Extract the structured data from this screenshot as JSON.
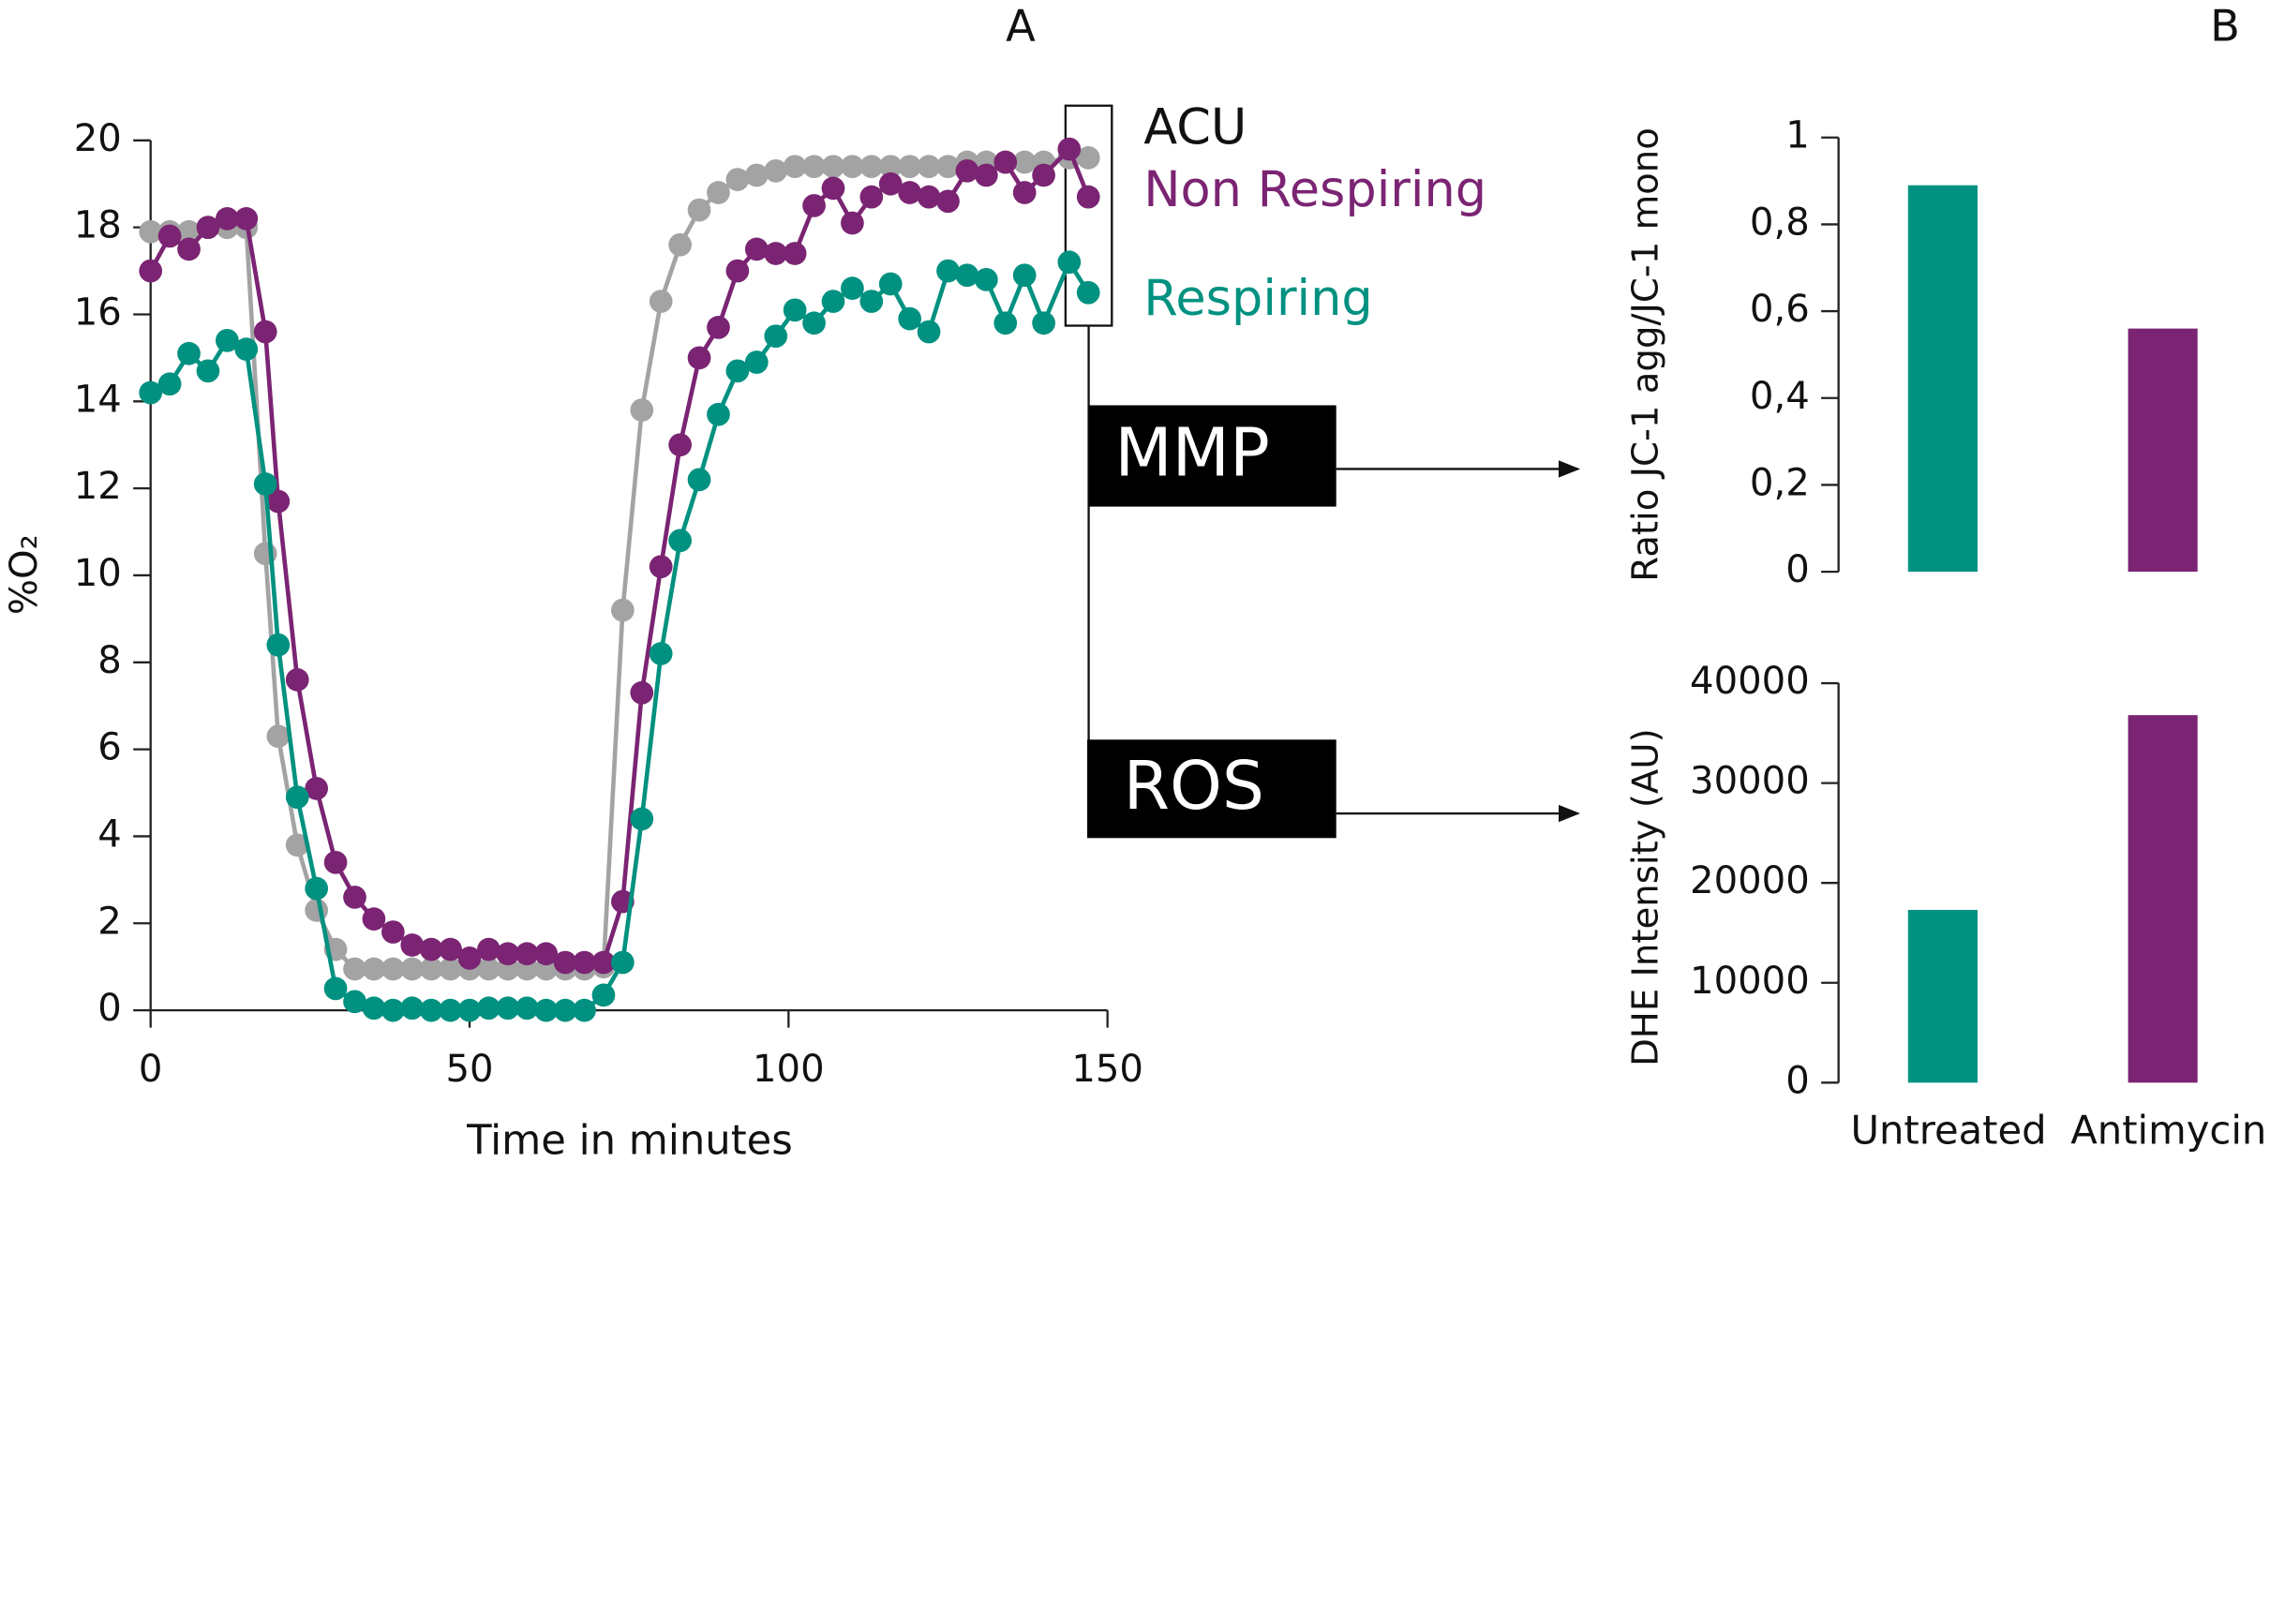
{
  "chart_data": [
    {
      "type": "line",
      "panel": "A",
      "xlabel": "Time in minutes",
      "ylabel": "%O₂",
      "x": [
        0,
        3,
        6,
        9,
        12,
        15,
        18,
        20,
        23,
        26,
        29,
        32,
        35,
        38,
        41,
        44,
        47,
        50,
        53,
        56,
        59,
        62,
        65,
        68,
        71,
        74,
        77,
        80,
        83,
        86,
        89,
        92,
        95,
        98,
        101,
        104,
        107,
        110,
        113,
        116,
        119,
        122,
        125,
        128,
        131,
        134,
        137,
        140,
        144,
        147
      ],
      "series": [
        {
          "name": "ACU",
          "color": "#a3a3a3",
          "label_color": "#111111",
          "values": [
            17.9,
            17.9,
            17.9,
            18.0,
            18.0,
            18.0,
            10.5,
            6.3,
            3.8,
            2.3,
            1.4,
            0.95,
            0.95,
            0.95,
            0.95,
            0.95,
            0.95,
            0.95,
            0.95,
            0.95,
            0.95,
            0.95,
            0.95,
            0.95,
            1.0,
            9.2,
            13.8,
            16.3,
            17.6,
            18.4,
            18.8,
            19.1,
            19.2,
            19.3,
            19.4,
            19.4,
            19.4,
            19.4,
            19.4,
            19.4,
            19.4,
            19.4,
            19.4,
            19.5,
            19.5,
            19.5,
            19.5,
            19.5,
            19.6,
            19.6
          ]
        },
        {
          "name": "Non Respiring",
          "color": "#7b2473",
          "label_color": "#7b2473",
          "values": [
            17.0,
            17.8,
            17.5,
            18.0,
            18.2,
            18.2,
            15.6,
            11.7,
            7.6,
            5.1,
            3.4,
            2.6,
            2.1,
            1.8,
            1.5,
            1.4,
            1.4,
            1.2,
            1.4,
            1.3,
            1.3,
            1.3,
            1.1,
            1.1,
            1.1,
            2.5,
            7.3,
            10.2,
            13.0,
            15.0,
            15.7,
            17.0,
            17.5,
            17.4,
            17.4,
            18.5,
            18.9,
            18.1,
            18.7,
            19.0,
            18.8,
            18.7,
            18.6,
            19.3,
            19.2,
            19.5,
            18.8,
            19.2,
            19.8,
            18.7
          ]
        },
        {
          "name": "Respiring",
          "color": "#009180",
          "label_color": "#009180",
          "values": [
            14.2,
            14.4,
            15.1,
            14.7,
            15.4,
            15.2,
            12.1,
            8.4,
            4.9,
            2.8,
            0.5,
            0.2,
            0.05,
            0,
            0.05,
            0,
            0,
            0,
            0.05,
            0.05,
            0.05,
            0,
            0,
            0,
            0.35,
            1.1,
            4.4,
            8.2,
            10.8,
            12.2,
            13.7,
            14.7,
            14.9,
            15.5,
            16.1,
            15.8,
            16.3,
            16.6,
            16.3,
            16.7,
            15.9,
            15.6,
            17.0,
            16.9,
            16.8,
            15.8,
            16.9,
            15.8,
            17.2,
            16.5
          ]
        }
      ],
      "xlim": [
        0,
        150
      ],
      "xticks": [
        0,
        50,
        100,
        150
      ],
      "ylim": [
        0,
        20
      ],
      "yticks": [
        0,
        2,
        4,
        6,
        8,
        10,
        12,
        14,
        16,
        18,
        20
      ],
      "annotations": [
        "MMP",
        "ROS"
      ]
    },
    {
      "type": "bar",
      "panel": "B",
      "ylabel": "Ratio JC-1 agg/JC-1 mono",
      "values": [
        0.89,
        0.56
      ],
      "colors": [
        "#009180",
        "#7b2473"
      ],
      "ylim": [
        0,
        1
      ],
      "yticks": [
        0,
        {
          "value": 0.2,
          "label": "0,2"
        },
        {
          "value": 0.4,
          "label": "0,4"
        },
        {
          "value": 0.6,
          "label": "0,6"
        },
        {
          "value": 0.8,
          "label": "0,8"
        },
        1
      ]
    },
    {
      "type": "bar",
      "ylabel": "DHE Intensity (AU)",
      "categories": [
        "Untreated",
        "Antimycin"
      ],
      "values": [
        17300,
        36800
      ],
      "colors": [
        "#009180",
        "#7b2473"
      ],
      "ylim": [
        0,
        40000
      ],
      "yticks": [
        0,
        10000,
        20000,
        30000,
        40000
      ]
    }
  ]
}
